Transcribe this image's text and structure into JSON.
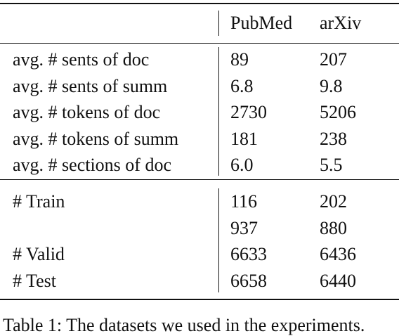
{
  "table": {
    "header": [
      null,
      "PubMed",
      "arXiv"
    ],
    "groups": [
      [
        [
          "avg. # sents of doc",
          "89",
          "207"
        ],
        [
          "avg. # sents of summ",
          "6.8",
          "9.8"
        ],
        [
          "avg. # tokens of doc",
          "2730",
          "5206"
        ],
        [
          "avg. # tokens of summ",
          "181",
          "238"
        ],
        [
          "avg. # sections of doc",
          "6.0",
          "5.5"
        ]
      ],
      [
        [
          "# Train",
          "116",
          "202"
        ],
        [
          null,
          "937",
          "880"
        ],
        [
          "# Valid",
          "6633",
          "6436"
        ],
        [
          "# Test",
          "6658",
          "6440"
        ]
      ]
    ]
  },
  "caption": "Table 1: The datasets we used in the experiments."
}
